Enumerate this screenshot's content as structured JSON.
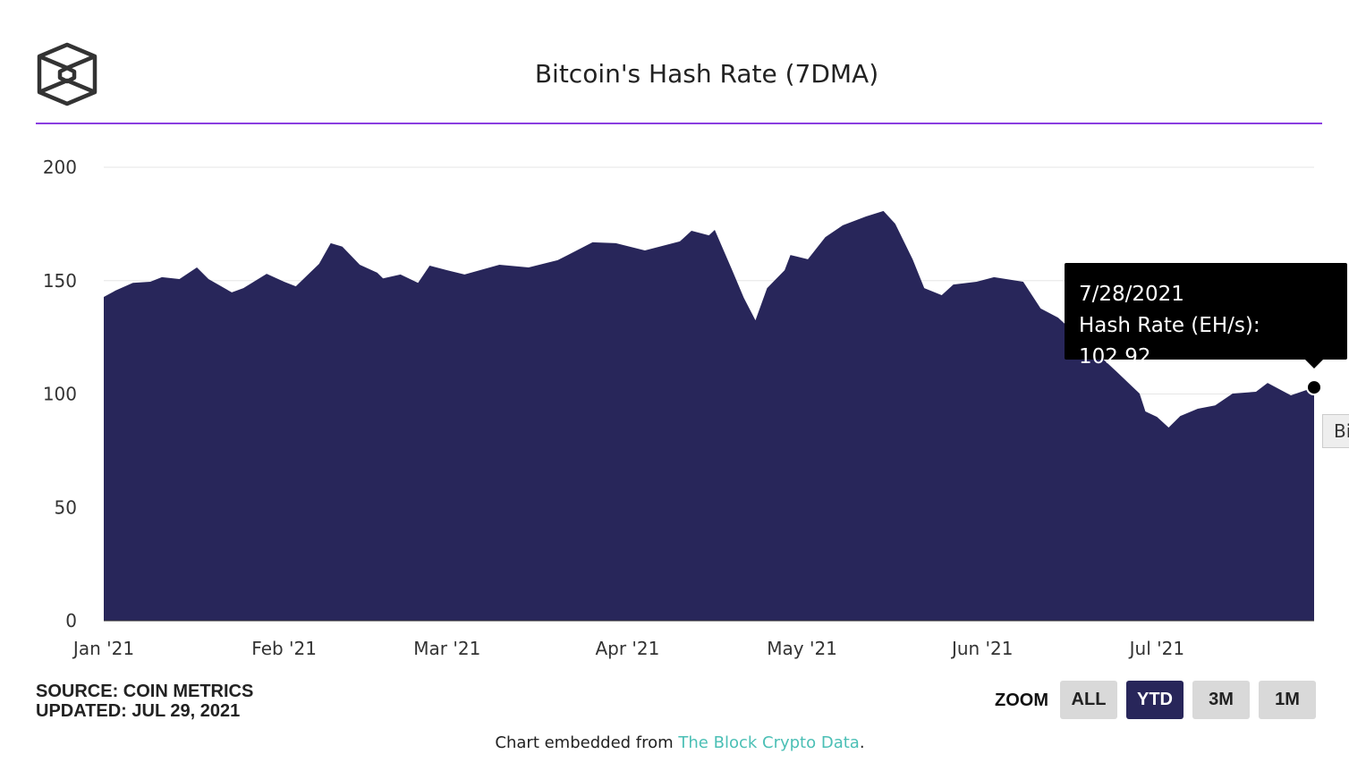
{
  "chart_data": {
    "type": "area",
    "title": "Bitcoin's Hash Rate (7DMA)",
    "xlabel": "",
    "ylabel": "Hash Rate (EH/s)",
    "ylim": [
      0,
      200
    ],
    "yticks": [
      0,
      50,
      100,
      150,
      200
    ],
    "ytick_labels": [
      "0",
      "50",
      "100",
      "150",
      "200"
    ],
    "xticks": [
      {
        "day": 0,
        "label": "Jan '21"
      },
      {
        "day": 31,
        "label": "Feb '21"
      },
      {
        "day": 59,
        "label": "Mar '21"
      },
      {
        "day": 90,
        "label": "Apr '21"
      },
      {
        "day": 120,
        "label": "May '21"
      },
      {
        "day": 151,
        "label": "Jun '21"
      },
      {
        "day": 181,
        "label": "Jul '21"
      }
    ],
    "x_units": "days since 2021-01-01",
    "xlim": [
      0,
      208
    ],
    "grid": true,
    "color": "#28265a",
    "series": [
      {
        "name": "Hash Rate (EH/s)",
        "points": [
          [
            0,
            142.8
          ],
          [
            2,
            145.6
          ],
          [
            5,
            149
          ],
          [
            8,
            149.5
          ],
          [
            10,
            151.5
          ],
          [
            13,
            150.7
          ],
          [
            16,
            155.8
          ],
          [
            18,
            150.7
          ],
          [
            22,
            144.8
          ],
          [
            24,
            146.7
          ],
          [
            28,
            153
          ],
          [
            31,
            149.5
          ],
          [
            33,
            147.5
          ],
          [
            37,
            157.4
          ],
          [
            39,
            166.5
          ],
          [
            41,
            165
          ],
          [
            44,
            157
          ],
          [
            47,
            153.5
          ],
          [
            48,
            151
          ],
          [
            51,
            152.7
          ],
          [
            54,
            149
          ],
          [
            56,
            156.6
          ],
          [
            59,
            154.6
          ],
          [
            62,
            152.7
          ],
          [
            68,
            157
          ],
          [
            73,
            155.8
          ],
          [
            78,
            159
          ],
          [
            84,
            166.9
          ],
          [
            88,
            166.5
          ],
          [
            93,
            163.3
          ],
          [
            99,
            167.3
          ],
          [
            101,
            172
          ],
          [
            104,
            170
          ],
          [
            105,
            172.4
          ],
          [
            108,
            154.6
          ],
          [
            110,
            142.4
          ],
          [
            112,
            132.5
          ],
          [
            114,
            146.7
          ],
          [
            117,
            154.6
          ],
          [
            118,
            161.3
          ],
          [
            121,
            159.4
          ],
          [
            124,
            169.2
          ],
          [
            127,
            174.4
          ],
          [
            131,
            178.3
          ],
          [
            134,
            180.7
          ],
          [
            136,
            175.1
          ],
          [
            139,
            159.4
          ],
          [
            141,
            146.7
          ],
          [
            144,
            143.6
          ],
          [
            146,
            148.3
          ],
          [
            150,
            149.5
          ],
          [
            153,
            151.5
          ],
          [
            158,
            149.5
          ],
          [
            161,
            137.7
          ],
          [
            164,
            133.7
          ],
          [
            169,
            121.9
          ],
          [
            174,
            110
          ],
          [
            178,
            100.2
          ],
          [
            179,
            92.3
          ],
          [
            181,
            89.9
          ],
          [
            183,
            85.2
          ],
          [
            185,
            90.3
          ],
          [
            188,
            93.5
          ],
          [
            191,
            95
          ],
          [
            194,
            100.2
          ],
          [
            198,
            101
          ],
          [
            200,
            104.9
          ],
          [
            204,
            99.4
          ],
          [
            208,
            102.92
          ]
        ]
      }
    ]
  },
  "tooltip": {
    "date": "7/28/2021",
    "label": "Hash Rate (EH/s): 102.92",
    "value": 102.92,
    "day": 208
  },
  "source": {
    "line1": "SOURCE: COIN METRICS",
    "line2": "UPDATED: JUL 29, 2021"
  },
  "zoom": {
    "label": "ZOOM",
    "buttons": [
      "ALL",
      "YTD",
      "3M",
      "1M"
    ],
    "active": "YTD"
  },
  "side_button": "Bi",
  "embed": {
    "prefix": "Chart embedded from ",
    "link": "The Block Crypto Data",
    "suffix": "."
  }
}
